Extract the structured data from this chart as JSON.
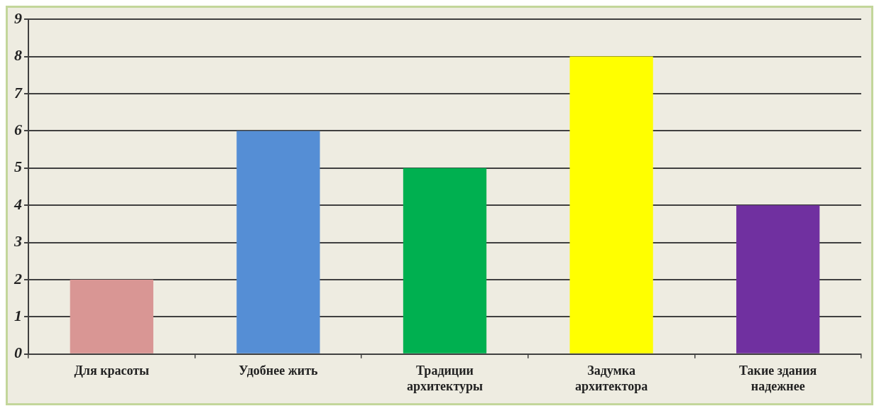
{
  "chart_data": {
    "type": "bar",
    "categories": [
      "Для красоты",
      "Удобнее жить",
      "Традиции архитектуры",
      "Задумка архитектора",
      "Такие здания надежнее"
    ],
    "values": [
      2,
      6,
      5,
      8,
      4
    ],
    "colors": [
      "#d99694",
      "#558ed5",
      "#00b050",
      "#ffff00",
      "#7030a0"
    ],
    "ylim": [
      0,
      9
    ],
    "yticks": [
      0,
      1,
      2,
      3,
      4,
      5,
      6,
      7,
      8,
      9
    ],
    "grid": "y",
    "legend": false
  }
}
